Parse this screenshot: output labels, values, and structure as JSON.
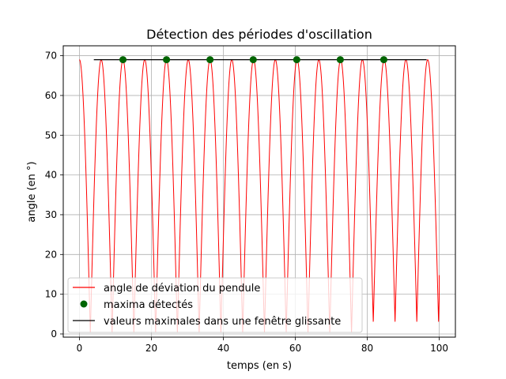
{
  "chart_data": {
    "type": "line",
    "title": "Détection des périodes d'oscillation",
    "xlabel": "temps (en s)",
    "ylabel": "angle (en °)",
    "xlim": [
      -4.5,
      104.5
    ],
    "ylim": [
      -0.8,
      72.5
    ],
    "xticks": [
      0,
      20,
      40,
      60,
      80,
      100
    ],
    "yticks": [
      0,
      10,
      20,
      30,
      40,
      50,
      60,
      70
    ],
    "grid": true,
    "legend_position": "lower-left",
    "series": [
      {
        "name": "angle de déviation du pendule",
        "kind": "line",
        "color": "#ff0000",
        "amplitude": 69,
        "period": 6.05,
        "x_start": 0,
        "x_end": 100,
        "last_value": 14.8,
        "late_minima": [
          {
            "x": 81.6,
            "y": 2.8
          },
          {
            "x": 87.6,
            "y": 2.8
          },
          {
            "x": 93.6,
            "y": 2.8
          },
          {
            "x": 99.5,
            "y": 2.8
          }
        ]
      },
      {
        "name": "maxima détectés",
        "kind": "scatter",
        "color": "#006400",
        "x": [
          12.1,
          24.2,
          36.3,
          48.3,
          60.4,
          72.5,
          84.6
        ],
        "y": [
          69,
          69,
          69,
          69,
          69,
          69,
          69
        ]
      },
      {
        "name": "valeurs maximales dans une fenêtre glissante",
        "kind": "line",
        "color": "#000000",
        "x": [
          4,
          96.5
        ],
        "y": [
          69,
          69
        ]
      }
    ]
  }
}
